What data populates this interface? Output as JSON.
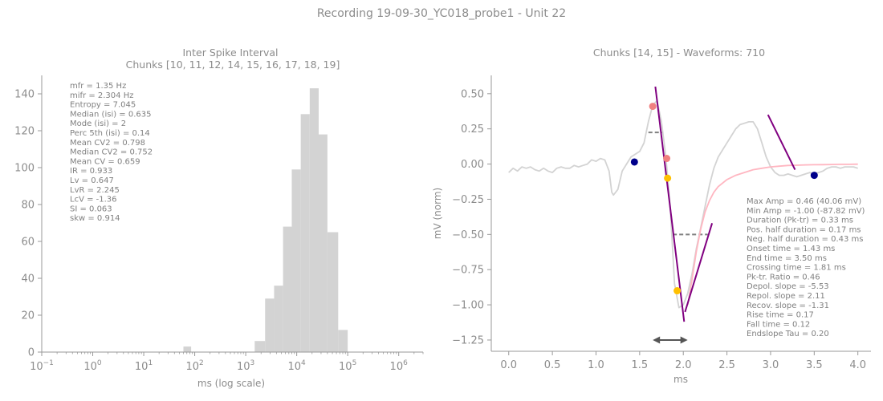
{
  "figure": {
    "suptitle": "Recording 19-09-30_YC018_probe1 - Unit 22"
  },
  "chart_data": [
    {
      "type": "bar",
      "title": "Inter Spike Interval",
      "subtitle": "Chunks [10, 11, 12, 14, 15, 16, 17, 18, 19]",
      "xlabel": "ms (log scale)",
      "ylabel": "",
      "xscale": "log",
      "xlim": [
        0.1,
        3000000
      ],
      "ylim": [
        0,
        150
      ],
      "yticks": [
        0,
        20,
        40,
        60,
        80,
        100,
        120,
        140
      ],
      "xtick_exponents": [
        -1,
        0,
        1,
        2,
        3,
        4,
        5,
        6
      ],
      "bar_color": "#d3d3d3",
      "bins": [
        {
          "x0": 60,
          "x1": 85,
          "count": 3
        },
        {
          "x0": 1500,
          "x1": 2400,
          "count": 6
        },
        {
          "x0": 2400,
          "x1": 3600,
          "count": 29
        },
        {
          "x0": 3600,
          "x1": 5400,
          "count": 36
        },
        {
          "x0": 5400,
          "x1": 8000,
          "count": 68
        },
        {
          "x0": 8000,
          "x1": 12000,
          "count": 99
        },
        {
          "x0": 12000,
          "x1": 18000,
          "count": 129
        },
        {
          "x0": 18000,
          "x1": 27000,
          "count": 143
        },
        {
          "x0": 27000,
          "x1": 40000,
          "count": 118
        },
        {
          "x0": 40000,
          "x1": 65000,
          "count": 65
        },
        {
          "x0": 65000,
          "x1": 100000,
          "count": 12
        }
      ],
      "stats": [
        "mfr = 1.35 Hz",
        "mifr = 2.304 Hz",
        "Entropy = 7.045",
        "Median (isi) = 0.635",
        "Mode (isi) = 2",
        "Perc 5th (isi) = 0.14",
        "Mean CV2 = 0.798",
        "Median CV2 = 0.752",
        "Mean CV = 0.659",
        "IR = 0.933",
        "Lv = 0.647",
        "LvR = 2.245",
        "LcV = -1.36",
        "SI = 0.063",
        "skw = 0.914"
      ]
    },
    {
      "type": "line",
      "title": "Chunks [14, 15] - Waveforms: 710",
      "xlabel": "ms",
      "ylabel": "mV (norm)",
      "xlim": [
        -0.2,
        4.15
      ],
      "ylim": [
        -1.33,
        0.63
      ],
      "xticks": [
        0.0,
        0.5,
        1.0,
        1.5,
        2.0,
        2.5,
        3.0,
        3.5,
        4.0
      ],
      "yticks": [
        0.5,
        0.25,
        0.0,
        -0.25,
        -0.5,
        -0.75,
        -1.0,
        -1.25
      ],
      "series": [
        {
          "color": "#d3d3d3",
          "x": [
            0.0,
            0.05,
            0.1,
            0.15,
            0.2,
            0.25,
            0.3,
            0.35,
            0.4,
            0.45,
            0.5,
            0.55,
            0.6,
            0.65,
            0.7,
            0.75,
            0.8,
            0.85,
            0.9,
            0.95,
            1.0,
            1.05,
            1.1,
            1.15,
            1.18,
            1.2,
            1.25,
            1.3,
            1.35,
            1.4,
            1.45,
            1.5,
            1.55,
            1.6,
            1.65,
            1.7,
            1.75,
            1.8,
            1.85,
            1.9,
            1.95,
            2.0,
            2.05,
            2.1,
            2.15,
            2.2,
            2.25,
            2.3,
            2.35,
            2.4,
            2.45,
            2.5,
            2.55,
            2.6,
            2.65,
            2.7,
            2.75,
            2.8,
            2.85,
            2.9,
            2.95,
            3.0,
            3.05,
            3.1,
            3.15,
            3.2,
            3.25,
            3.3,
            3.35,
            3.4,
            3.45,
            3.5,
            3.55,
            3.6,
            3.65,
            3.7,
            3.75,
            3.8,
            3.85,
            3.9,
            3.95,
            4.0
          ],
          "y": [
            -0.06,
            -0.03,
            -0.05,
            -0.02,
            -0.03,
            -0.02,
            -0.04,
            -0.05,
            -0.03,
            -0.05,
            -0.06,
            -0.03,
            -0.02,
            -0.03,
            -0.03,
            -0.01,
            -0.02,
            -0.01,
            0.0,
            0.03,
            0.02,
            0.04,
            0.03,
            -0.05,
            -0.2,
            -0.22,
            -0.18,
            -0.05,
            0.0,
            0.05,
            0.07,
            0.09,
            0.15,
            0.3,
            0.42,
            0.45,
            0.3,
            0.05,
            -0.3,
            -0.85,
            -1.02,
            -1.0,
            -0.92,
            -0.78,
            -0.6,
            -0.45,
            -0.3,
            -0.15,
            -0.03,
            0.05,
            0.1,
            0.15,
            0.2,
            0.25,
            0.28,
            0.29,
            0.3,
            0.3,
            0.25,
            0.15,
            0.05,
            -0.02,
            -0.06,
            -0.08,
            -0.08,
            -0.07,
            -0.08,
            -0.09,
            -0.08,
            -0.07,
            -0.06,
            -0.07,
            -0.06,
            -0.05,
            -0.03,
            -0.02,
            -0.02,
            -0.03,
            -0.02,
            -0.02,
            -0.02,
            -0.03
          ]
        },
        {
          "color": "#ffb6c1",
          "x": [
            2.05,
            2.1,
            2.15,
            2.2,
            2.25,
            2.3,
            2.35,
            2.4,
            2.5,
            2.6,
            2.7,
            2.8,
            2.9,
            3.0,
            3.1,
            3.2,
            3.3,
            3.4,
            3.5,
            3.6,
            3.7,
            3.8,
            3.9,
            4.0
          ],
          "y": [
            -1.0,
            -0.82,
            -0.62,
            -0.46,
            -0.34,
            -0.26,
            -0.2,
            -0.16,
            -0.11,
            -0.08,
            -0.06,
            -0.04,
            -0.03,
            -0.02,
            -0.015,
            -0.01,
            -0.008,
            -0.006,
            -0.005,
            -0.004,
            -0.003,
            -0.002,
            -0.002,
            -0.001
          ]
        },
        {
          "color": "#800080",
          "x": [
            1.68,
            2.01
          ],
          "y": [
            0.55,
            -1.12
          ]
        },
        {
          "color": "#800080",
          "x": [
            2.02,
            2.33
          ],
          "y": [
            -1.05,
            -0.42
          ]
        },
        {
          "color": "#800080",
          "x": [
            2.97,
            3.28
          ],
          "y": [
            0.35,
            -0.04
          ]
        }
      ],
      "points": [
        {
          "x": 1.44,
          "y": 0.015,
          "color": "#00008b"
        },
        {
          "x": 1.65,
          "y": 0.41,
          "color": "#f08080"
        },
        {
          "x": 1.81,
          "y": 0.04,
          "color": "#f08080"
        },
        {
          "x": 1.82,
          "y": -0.1,
          "color": "#ffc000"
        },
        {
          "x": 1.93,
          "y": -0.9,
          "color": "#ffc000"
        },
        {
          "x": 3.5,
          "y": -0.08,
          "color": "#00008b"
        }
      ],
      "dashed_lines": [
        {
          "x0": 1.6,
          "x1": 1.77,
          "y": 0.225
        },
        {
          "x0": 1.88,
          "x1": 2.28,
          "y": -0.5
        }
      ],
      "arrow": {
        "x0": 1.65,
        "x1": 2.05,
        "y": -1.25
      },
      "stats": [
        "Max Amp = 0.46 (40.06 mV)",
        "Min Amp = -1.00 (-87.82 mV)",
        "Duration (Pk-tr) = 0.33 ms",
        "Pos. half duration = 0.17 ms",
        "Neg. half duration = 0.43 ms",
        "Onset time = 1.43 ms",
        "End time = 3.50 ms",
        "Crossing time = 1.81 ms",
        "Pk-tr. Ratio = 0.46",
        "Depol. slope = -5.53",
        "Repol. slope = 2.11",
        "Recov. slope = -1.31",
        "Rise time = 0.17",
        "Fall time = 0.12",
        "Endslope Tau = 0.20"
      ]
    }
  ]
}
